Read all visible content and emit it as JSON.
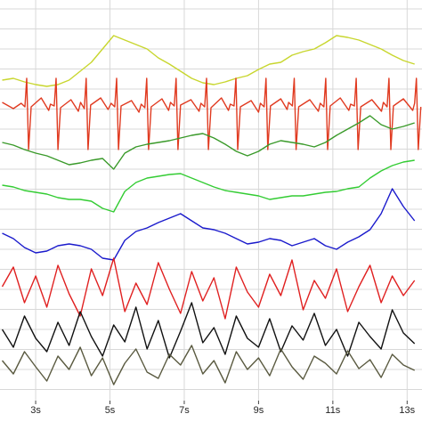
{
  "chart_data": {
    "type": "line",
    "x": [
      2.1,
      2.4,
      2.7,
      3.0,
      3.3,
      3.6,
      3.9,
      4.2,
      4.5,
      4.8,
      5.1,
      5.4,
      5.7,
      6.0,
      6.3,
      6.6,
      6.9,
      7.2,
      7.5,
      7.8,
      8.1,
      8.4,
      8.7,
      9.0,
      9.3,
      9.6,
      9.9,
      10.2,
      10.5,
      10.8,
      11.1,
      11.4,
      11.7,
      12.0,
      12.3,
      12.6,
      12.9,
      13.2
    ],
    "xlim": [
      2.04,
      13.4
    ],
    "xticks": [
      {
        "value": 3,
        "label": "3s"
      },
      {
        "value": 5,
        "label": "5s"
      },
      {
        "value": 7,
        "label": "7s"
      },
      {
        "value": 9,
        "label": "9s"
      },
      {
        "value": 11,
        "label": "11s"
      },
      {
        "value": 13,
        "label": "13s"
      }
    ],
    "ylim": [
      0,
      450
    ],
    "grid": true,
    "series": [
      {
        "color": "#c8d62e",
        "values": [
          360,
          362,
          358,
          355,
          353,
          355,
          360,
          370,
          380,
          395,
          410,
          405,
          400,
          395,
          385,
          378,
          370,
          362,
          357,
          355,
          358,
          362,
          365,
          372,
          378,
          380,
          388,
          392,
          395,
          402,
          410,
          408,
          405,
          400,
          395,
          388,
          382,
          378
        ]
      },
      {
        "color": "#e03a20",
        "x": [
          2.1,
          2.4,
          2.61,
          2.71,
          2.76,
          2.81,
          2.88,
          3.15,
          3.35,
          3.4,
          3.5,
          3.55,
          3.6,
          3.67,
          3.95,
          4.15,
          4.21,
          4.31,
          4.36,
          4.41,
          4.48,
          4.75,
          4.95,
          5.03,
          5.13,
          5.18,
          5.23,
          5.3,
          5.58,
          5.78,
          5.84,
          5.94,
          5.99,
          6.04,
          6.11,
          6.4,
          6.58,
          6.63,
          6.73,
          6.78,
          6.83,
          6.9,
          7.18,
          7.4,
          7.45,
          7.55,
          7.6,
          7.65,
          7.72,
          8.0,
          8.19,
          8.24,
          8.34,
          8.39,
          8.44,
          8.51,
          8.8,
          9.0,
          9.05,
          9.15,
          9.2,
          9.25,
          9.32,
          9.6,
          9.77,
          9.81,
          9.91,
          9.96,
          10.01,
          10.08,
          10.38,
          10.61,
          10.66,
          10.76,
          10.81,
          10.86,
          10.93,
          11.2,
          11.43,
          11.48,
          11.58,
          11.63,
          11.68,
          11.75,
          12.05,
          12.31,
          12.36,
          12.46,
          12.51,
          12.56,
          12.63,
          12.9,
          13.15,
          13.2,
          13.25,
          13.3,
          13.37
        ],
        "values": [
          335,
          328,
          334,
          330,
          362,
          282,
          330,
          340,
          326,
          333,
          331,
          362,
          282,
          329,
          338,
          325,
          335,
          328,
          362,
          282,
          332,
          340,
          327,
          334,
          330,
          362,
          282,
          331,
          337,
          324,
          333,
          329,
          362,
          282,
          330,
          339,
          326,
          335,
          331,
          362,
          282,
          332,
          338,
          325,
          334,
          330,
          362,
          282,
          329,
          340,
          326,
          333,
          331,
          362,
          282,
          330,
          337,
          324,
          334,
          330,
          362,
          282,
          331,
          339,
          327,
          335,
          331,
          362,
          282,
          330,
          338,
          325,
          334,
          330,
          362,
          282,
          331,
          340,
          326,
          333,
          331,
          362,
          282,
          330,
          338,
          325,
          335,
          330,
          362,
          282,
          331,
          339,
          326,
          334,
          362,
          282,
          330
        ]
      },
      {
        "color": "#3a9a2a",
        "values": [
          290,
          287,
          282,
          278,
          275,
          270,
          265,
          267,
          270,
          272,
          260,
          278,
          285,
          288,
          290,
          292,
          295,
          298,
          300,
          295,
          288,
          280,
          275,
          280,
          288,
          292,
          290,
          288,
          285,
          290,
          298,
          305,
          312,
          320,
          310,
          305,
          308,
          312
        ]
      },
      {
        "color": "#33cc33",
        "values": [
          242,
          240,
          236,
          234,
          232,
          228,
          226,
          226,
          224,
          216,
          212,
          235,
          245,
          250,
          252,
          254,
          255,
          250,
          245,
          240,
          236,
          234,
          232,
          230,
          226,
          228,
          230,
          230,
          232,
          234,
          235,
          238,
          240,
          250,
          258,
          264,
          268,
          270
        ]
      },
      {
        "color": "#1a1acc",
        "values": [
          188,
          182,
          172,
          166,
          168,
          174,
          176,
          174,
          170,
          160,
          158,
          180,
          190,
          194,
          200,
          205,
          210,
          202,
          194,
          192,
          188,
          182,
          176,
          178,
          182,
          180,
          174,
          178,
          182,
          174,
          170,
          178,
          184,
          192,
          210,
          238,
          218,
          202
        ]
      },
      {
        "color": "#e02020",
        "values": [
          128,
          150,
          110,
          140,
          105,
          152,
          120,
          95,
          148,
          118,
          160,
          100,
          132,
          108,
          155,
          125,
          98,
          145,
          112,
          138,
          92,
          150,
          122,
          105,
          142,
          118,
          158,
          102,
          135,
          115,
          148,
          100,
          128,
          152,
          110,
          140,
          118,
          135
        ]
      },
      {
        "color": "#111111",
        "values": [
          80,
          60,
          95,
          70,
          55,
          88,
          62,
          100,
          72,
          50,
          85,
          66,
          105,
          58,
          90,
          48,
          78,
          110,
          65,
          82,
          52,
          95,
          70,
          60,
          92,
          55,
          84,
          68,
          98,
          62,
          80,
          50,
          88,
          72,
          58,
          102,
          76,
          64
        ]
      },
      {
        "color": "#5a5a40",
        "values": [
          45,
          30,
          55,
          38,
          22,
          50,
          35,
          60,
          28,
          48,
          18,
          42,
          58,
          32,
          25,
          52,
          40,
          62,
          30,
          45,
          20,
          55,
          35,
          48,
          28,
          58,
          38,
          24,
          50,
          42,
          30,
          56,
          36,
          46,
          26,
          52,
          40,
          34
        ]
      }
    ]
  }
}
